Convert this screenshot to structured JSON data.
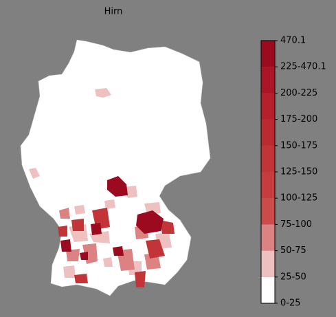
{
  "map": {
    "title": "Hirn",
    "colorbar": {
      "labels": [
        "0-25",
        "25-50",
        "50-75",
        "75-100",
        "100-125",
        "125-150",
        "150-175",
        "175-200",
        "200-225",
        "225-470.1",
        "470.1"
      ],
      "colors": [
        "#ffffff",
        "#efc0c0",
        "#dc8282",
        "#cd4a4a",
        "#c73d3f",
        "#c23437",
        "#bc2a31",
        "#b5202c",
        "#ac1527",
        "#9c0a1f"
      ]
    }
  }
}
